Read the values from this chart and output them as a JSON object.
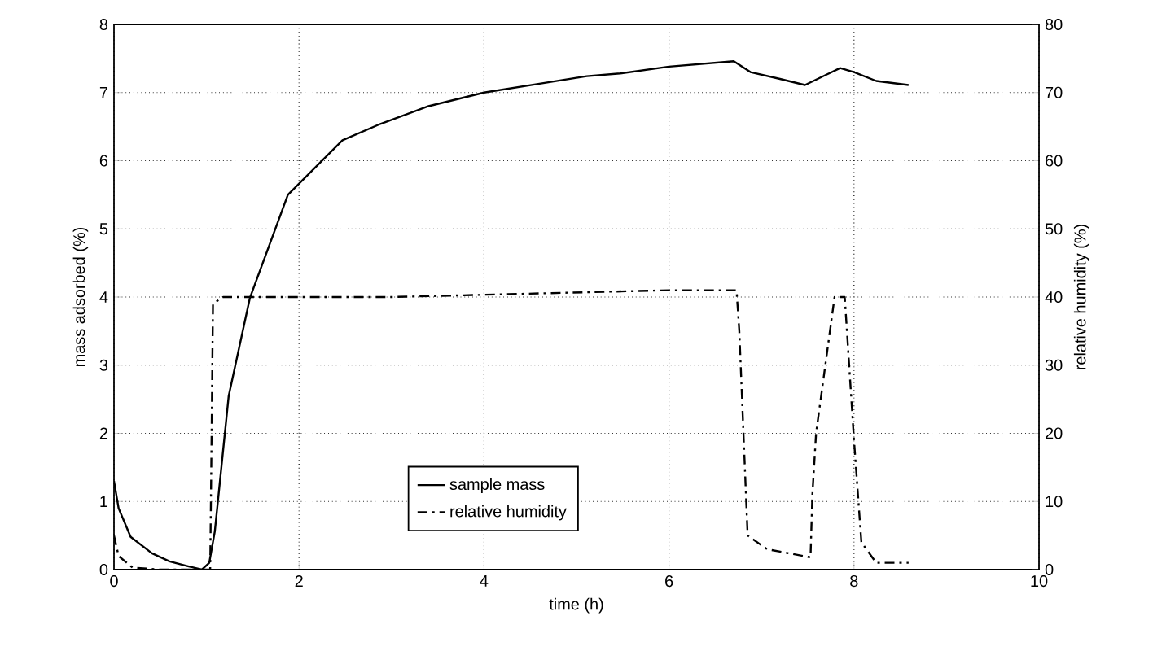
{
  "chart_data": {
    "type": "line",
    "xlabel": "time (h)",
    "ylabel": "mass adsorbed (%)",
    "y2label": "relative humidity (%)",
    "xlim": [
      0,
      10
    ],
    "xticks": [
      0,
      2,
      4,
      6,
      8,
      10
    ],
    "ylim": [
      0,
      8
    ],
    "yticks": [
      0,
      1,
      2,
      3,
      4,
      5,
      6,
      7,
      8
    ],
    "y2lim": [
      0,
      80
    ],
    "y2ticks": [
      0,
      10,
      20,
      30,
      40,
      50,
      60,
      70,
      80
    ],
    "grid": true,
    "legend": "bottom",
    "marker": "none",
    "series": [
      {
        "name": "sample mass",
        "color": "#000000",
        "line_style": "solid",
        "x": [
          0,
          0.05,
          0.18,
          0.41,
          0.6,
          0.8,
          0.95,
          1.03,
          1.09,
          1.24,
          1.47,
          1.88,
          2.47,
          2.88,
          3.4,
          4.0,
          4.6,
          5.11,
          5.47,
          6.0,
          6.7,
          6.88,
          7.2,
          7.47,
          7.85,
          8.0,
          8.24,
          8.59
        ],
        "values": [
          1.3,
          0.9,
          0.48,
          0.24,
          0.12,
          0.05,
          0.0,
          0.1,
          0.56,
          2.55,
          3.99,
          5.5,
          6.3,
          6.54,
          6.8,
          7.0,
          7.13,
          7.24,
          7.28,
          7.38,
          7.46,
          7.3,
          7.2,
          7.11,
          7.36,
          7.3,
          7.17,
          7.11
        ]
      },
      {
        "name": "relative humidity",
        "color": "#000000",
        "line_style": "dashed",
        "axis": "y2",
        "x": [
          0,
          0.05,
          0.2,
          0.5,
          0.9,
          1.04,
          1.07,
          1.18,
          3.0,
          6.0,
          6.73,
          6.76,
          6.85,
          7.06,
          7.53,
          7.55,
          7.59,
          7.7,
          7.79,
          7.9,
          8.0,
          8.08,
          8.24,
          8.59
        ],
        "values": [
          5,
          2,
          0.3,
          0,
          0,
          0,
          39,
          40,
          40,
          41,
          41,
          35,
          5,
          3,
          1.8,
          11,
          20,
          31,
          40,
          40,
          19,
          4,
          1,
          1
        ]
      }
    ]
  }
}
